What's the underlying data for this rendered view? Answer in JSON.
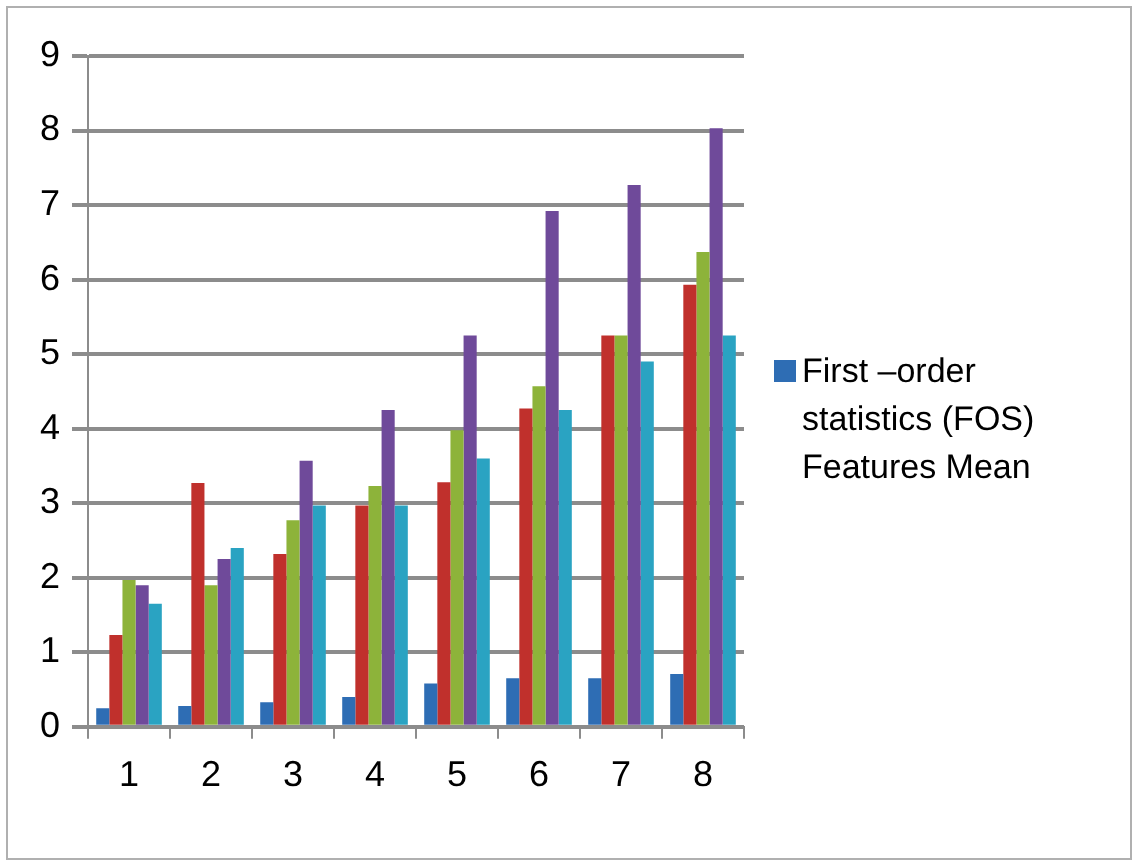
{
  "chart_data": {
    "type": "bar",
    "categories": [
      "1",
      "2",
      "3",
      "4",
      "5",
      "6",
      "7",
      "8"
    ],
    "series": [
      {
        "name": "First –order statistics (FOS) Features Mean",
        "color": "#2e6db4",
        "values": [
          0.25,
          0.28,
          0.33,
          0.4,
          0.58,
          0.65,
          0.65,
          0.71
        ]
      },
      {
        "color": "#c0302c",
        "values": [
          1.23,
          3.27,
          2.32,
          2.97,
          3.28,
          4.27,
          5.25,
          5.93
        ]
      },
      {
        "color": "#8db33a",
        "values": [
          1.97,
          1.9,
          2.77,
          3.23,
          3.98,
          4.57,
          5.25,
          6.37
        ]
      },
      {
        "color": "#6f4a9a",
        "values": [
          1.9,
          2.25,
          3.57,
          4.25,
          5.25,
          6.92,
          7.27,
          8.03
        ]
      },
      {
        "color": "#2aa3c2",
        "values": [
          1.65,
          2.4,
          2.97,
          2.97,
          3.6,
          4.25,
          4.9,
          5.25
        ]
      }
    ],
    "ylim": [
      0,
      9
    ],
    "yticks": [
      0,
      1,
      2,
      3,
      4,
      5,
      6,
      7,
      8,
      9
    ],
    "grid": "y",
    "legend": "right"
  }
}
